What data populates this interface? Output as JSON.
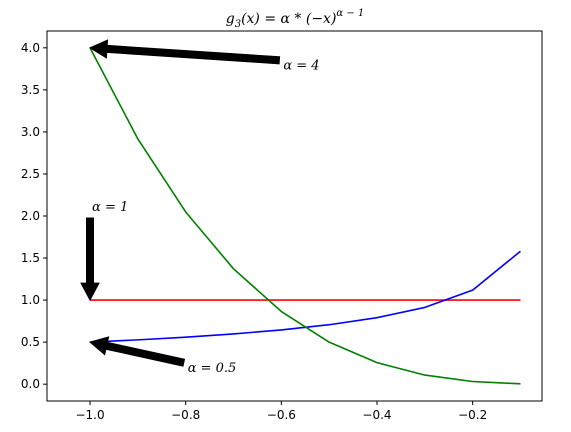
{
  "chart_data": {
    "type": "line",
    "title": "g₃(x) = α * (−x)^(α−1)",
    "title_parts": {
      "main": "g",
      "sub": "3",
      "body": "(x) = α * (−x)",
      "sup": "α − 1"
    },
    "xlabel": "",
    "ylabel": "",
    "xlim": [
      -1.09,
      -0.055
    ],
    "ylim": [
      -0.2,
      4.2
    ],
    "xticks": [
      -1.0,
      -0.8,
      -0.6,
      -0.4,
      -0.2
    ],
    "xtick_labels": [
      "−1.0",
      "−0.8",
      "−0.6",
      "−0.4",
      "−0.2"
    ],
    "yticks": [
      0.0,
      0.5,
      1.0,
      1.5,
      2.0,
      2.5,
      3.0,
      3.5,
      4.0
    ],
    "ytick_labels": [
      "0.0",
      "0.5",
      "1.0",
      "1.5",
      "2.0",
      "2.5",
      "3.0",
      "3.5",
      "4.0"
    ],
    "grid": false,
    "x": [
      -1.0,
      -0.9,
      -0.8,
      -0.7,
      -0.6,
      -0.5,
      -0.4,
      -0.3,
      -0.2,
      -0.1
    ],
    "series": [
      {
        "color": "#ff0000",
        "values": [
          1.0,
          1.0,
          1.0,
          1.0,
          1.0,
          1.0,
          1.0,
          1.0,
          1.0,
          1.0
        ]
      },
      {
        "color": "#0000ff",
        "values": [
          0.5,
          0.527,
          0.559,
          0.598,
          0.645,
          0.707,
          0.791,
          0.913,
          1.118,
          1.581
        ]
      },
      {
        "color": "#008000",
        "values": [
          4.0,
          2.916,
          2.048,
          1.372,
          0.864,
          0.5,
          0.256,
          0.108,
          0.032,
          0.004
        ]
      }
    ],
    "annotations": [
      {
        "text": "α = 4",
        "target": [
          -1.0,
          4.0
        ],
        "text_pos": [
          -0.6,
          3.85
        ]
      },
      {
        "text": "α = 1",
        "target": [
          -1.0,
          1.0
        ],
        "text_pos": [
          -1.0,
          2.0
        ]
      },
      {
        "text": "α = 0.5",
        "target": [
          -1.0,
          0.5
        ],
        "text_pos": [
          -0.8,
          0.25
        ]
      }
    ]
  }
}
